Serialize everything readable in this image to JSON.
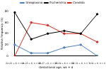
{
  "chart_data": {
    "type": "line",
    "x_label": "Gestational age, wk + d",
    "y_label": "Relative frequency (%)",
    "categories": [
      "22–23 + 6, n = 4",
      "24–25 + 6, n = 12",
      "26–27 + 6, n = 17",
      "28–29 + 6, n = 12",
      "30–31 + 6, n = 7",
      "≥32 + 0, n = 4"
    ],
    "series": [
      {
        "name": "Ureaplasma",
        "color": "#4a7fc1",
        "values": [
          20,
          5,
          5,
          15,
          20,
          0
        ]
      },
      {
        "name": "Escherichia",
        "color": "#000000",
        "values": [
          78,
          30,
          40,
          45,
          40,
          75
        ]
      },
      {
        "name": "Candida",
        "color": "#d9291c",
        "values": [
          0,
          60,
          55,
          40,
          40,
          25
        ]
      }
    ],
    "ylim": [
      0,
      80
    ],
    "yticks": [
      0,
      20,
      40,
      60,
      80
    ],
    "grid": false,
    "legend": "top",
    "marker": "circle"
  }
}
